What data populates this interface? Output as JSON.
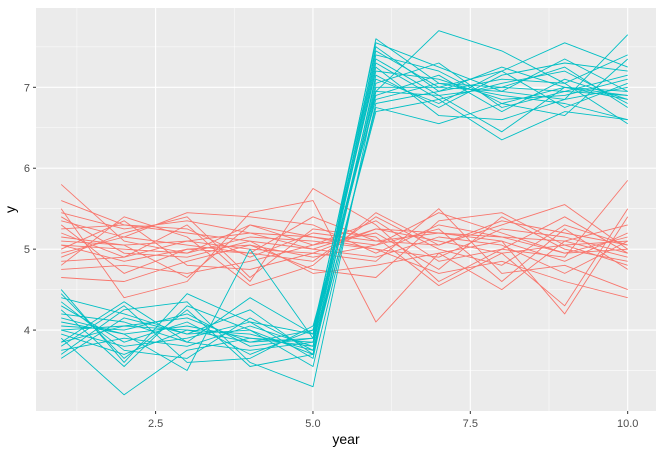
{
  "chart_data": {
    "type": "line",
    "title": "",
    "xlabel": "year",
    "ylabel": "y",
    "xlim": [
      0.6,
      10.45
    ],
    "ylim": [
      3.0,
      7.98
    ],
    "x_major_ticks": [
      2.5,
      5.0,
      7.5,
      10.0
    ],
    "x_minor_ticks": [
      1.25,
      3.75,
      6.25,
      8.75
    ],
    "x_tick_labels": [
      "2.5",
      "5.0",
      "7.5",
      "10.0"
    ],
    "y_major_ticks": [
      4,
      5,
      6,
      7
    ],
    "y_minor_ticks": [
      3.5,
      4.5,
      5.5,
      6.5,
      7.5
    ],
    "y_tick_labels": [
      "4",
      "5",
      "6",
      "7"
    ],
    "grid": true,
    "legend": "none",
    "x": [
      1,
      2,
      3,
      4,
      5,
      6,
      7,
      8,
      9,
      10
    ],
    "colors": {
      "group_a": "#F8766D",
      "group_b": "#00BFC4",
      "panel": "#EBEBEB",
      "grid": "#FFFFFF",
      "axis_text": "#4D4D4D",
      "title_text": "#000000"
    },
    "series": [
      {
        "group": "a",
        "values": [
          5.8,
          5.1,
          4.95,
          5.3,
          5.05,
          5.35,
          4.85,
          5.0,
          4.9,
          5.85
        ]
      },
      {
        "group": "a",
        "values": [
          5.6,
          5.3,
          5.2,
          5.1,
          5.0,
          5.25,
          5.1,
          4.95,
          5.05,
          5.1
        ]
      },
      {
        "group": "a",
        "values": [
          5.45,
          5.25,
          5.35,
          5.2,
          5.15,
          5.05,
          5.45,
          5.2,
          4.95,
          5.0
        ]
      },
      {
        "group": "a",
        "values": [
          5.35,
          5.15,
          5.45,
          5.4,
          5.3,
          4.95,
          5.3,
          5.15,
          5.1,
          4.9
        ]
      },
      {
        "group": "a",
        "values": [
          5.25,
          5.3,
          5.25,
          4.9,
          5.2,
          5.1,
          5.05,
          5.35,
          5.2,
          5.05
        ]
      },
      {
        "group": "a",
        "values": [
          5.15,
          5.05,
          5.1,
          5.0,
          4.95,
          5.25,
          5.2,
          5.1,
          4.85,
          5.2
        ]
      },
      {
        "group": "a",
        "values": [
          5.05,
          5.0,
          4.95,
          5.15,
          5.1,
          5.0,
          4.9,
          5.25,
          5.15,
          4.95
        ]
      },
      {
        "group": "a",
        "values": [
          4.95,
          5.15,
          5.05,
          4.95,
          4.85,
          5.4,
          5.0,
          4.8,
          5.3,
          5.05
        ]
      },
      {
        "group": "a",
        "values": [
          4.85,
          4.9,
          5.1,
          5.2,
          5.0,
          4.9,
          5.15,
          5.05,
          4.7,
          5.1
        ]
      },
      {
        "group": "a",
        "values": [
          4.75,
          4.8,
          4.7,
          4.85,
          5.05,
          5.2,
          4.75,
          5.4,
          5.0,
          4.85
        ]
      },
      {
        "group": "a",
        "values": [
          4.65,
          4.6,
          4.85,
          5.05,
          4.9,
          5.05,
          5.25,
          4.6,
          5.25,
          4.75
        ]
      },
      {
        "group": "a",
        "values": [
          5.5,
          4.4,
          4.6,
          5.45,
          5.6,
          4.1,
          4.95,
          5.1,
          4.2,
          5.4
        ]
      },
      {
        "group": "a",
        "values": [
          5.2,
          4.9,
          5.3,
          4.6,
          5.75,
          5.3,
          4.6,
          5.0,
          5.4,
          4.95
        ]
      },
      {
        "group": "a",
        "values": [
          5.0,
          5.35,
          4.8,
          4.75,
          4.95,
          4.85,
          5.5,
          4.7,
          4.8,
          4.5
        ]
      },
      {
        "group": "a",
        "values": [
          4.9,
          5.2,
          5.4,
          4.65,
          5.25,
          5.15,
          4.55,
          4.95,
          4.3,
          5.5
        ]
      },
      {
        "group": "a",
        "values": [
          5.3,
          4.7,
          5.0,
          5.05,
          4.75,
          4.65,
          5.35,
          5.45,
          5.05,
          4.8
        ]
      },
      {
        "group": "a",
        "values": [
          5.1,
          5.05,
          4.65,
          5.3,
          5.15,
          5.0,
          4.7,
          4.85,
          4.6,
          4.4
        ]
      },
      {
        "group": "a",
        "values": [
          4.8,
          5.4,
          5.15,
          4.55,
          4.8,
          5.45,
          5.05,
          5.3,
          5.55,
          5.0
        ]
      },
      {
        "group": "a",
        "values": [
          5.4,
          4.95,
          4.9,
          5.1,
          4.7,
          4.8,
          4.95,
          4.5,
          5.1,
          5.3
        ]
      },
      {
        "group": "a",
        "values": [
          5.05,
          4.85,
          5.0,
          4.95,
          5.4,
          5.1,
          5.2,
          5.15,
          4.95,
          5.15
        ]
      },
      {
        "group": "b",
        "values": [
          4.1,
          3.95,
          4.05,
          3.9,
          3.8,
          7.6,
          7.05,
          7.0,
          6.95,
          6.9
        ]
      },
      {
        "group": "b",
        "values": [
          4.4,
          4.2,
          3.95,
          4.0,
          3.7,
          7.5,
          6.95,
          7.1,
          7.05,
          7.4
        ]
      },
      {
        "group": "b",
        "values": [
          3.85,
          4.05,
          4.15,
          3.85,
          3.9,
          7.4,
          7.2,
          6.8,
          7.0,
          6.95
        ]
      },
      {
        "group": "b",
        "values": [
          4.0,
          3.8,
          3.9,
          4.1,
          3.95,
          7.2,
          7.1,
          6.85,
          6.9,
          7.1
        ]
      },
      {
        "group": "b",
        "values": [
          4.2,
          4.1,
          3.85,
          3.75,
          3.85,
          7.3,
          6.85,
          7.05,
          7.2,
          6.8
        ]
      },
      {
        "group": "b",
        "values": [
          3.95,
          3.7,
          4.0,
          3.95,
          3.75,
          7.0,
          7.0,
          6.95,
          6.85,
          7.0
        ]
      },
      {
        "group": "b",
        "values": [
          4.05,
          4.0,
          4.2,
          3.8,
          3.9,
          6.9,
          7.15,
          6.7,
          7.1,
          6.85
        ]
      },
      {
        "group": "b",
        "values": [
          3.75,
          3.9,
          3.8,
          4.05,
          3.8,
          7.1,
          6.8,
          7.2,
          6.75,
          7.05
        ]
      },
      {
        "group": "b",
        "values": [
          4.3,
          3.85,
          4.1,
          3.7,
          4.0,
          6.95,
          6.9,
          7.0,
          7.25,
          6.75
        ]
      },
      {
        "group": "b",
        "values": [
          3.65,
          4.15,
          3.95,
          4.25,
          3.7,
          7.05,
          7.3,
          6.75,
          6.95,
          7.15
        ]
      },
      {
        "group": "b",
        "values": [
          4.5,
          3.6,
          4.45,
          4.1,
          3.65,
          7.15,
          6.75,
          7.15,
          7.3,
          7.2
        ]
      },
      {
        "group": "b",
        "values": [
          3.8,
          4.3,
          3.6,
          3.65,
          4.05,
          6.85,
          7.05,
          6.9,
          6.8,
          6.6
        ]
      },
      {
        "group": "b",
        "values": [
          4.25,
          3.55,
          4.3,
          4.0,
          3.55,
          6.8,
          6.95,
          7.25,
          7.0,
          6.9
        ]
      },
      {
        "group": "b",
        "values": [
          3.9,
          3.2,
          3.75,
          3.9,
          3.85,
          7.25,
          6.65,
          6.6,
          6.85,
          7.65
        ]
      },
      {
        "group": "b",
        "values": [
          4.15,
          3.95,
          3.5,
          5.0,
          3.9,
          7.35,
          6.9,
          6.45,
          7.0,
          6.85
        ]
      },
      {
        "group": "b",
        "values": [
          3.7,
          4.25,
          4.35,
          3.6,
          3.3,
          6.95,
          7.7,
          7.45,
          7.05,
          6.55
        ]
      },
      {
        "group": "b",
        "values": [
          4.35,
          3.75,
          3.65,
          4.15,
          3.75,
          6.7,
          6.85,
          6.35,
          6.7,
          6.6
        ]
      },
      {
        "group": "b",
        "values": [
          4.0,
          4.05,
          4.0,
          3.85,
          4.0,
          7.45,
          7.0,
          7.2,
          7.55,
          7.25
        ]
      },
      {
        "group": "b",
        "values": [
          3.85,
          4.35,
          3.85,
          4.4,
          3.95,
          7.55,
          7.25,
          6.95,
          7.35,
          6.95
        ]
      },
      {
        "group": "b",
        "values": [
          4.45,
          3.65,
          4.25,
          3.55,
          3.7,
          6.75,
          6.55,
          6.8,
          6.65,
          7.35
        ]
      }
    ]
  }
}
